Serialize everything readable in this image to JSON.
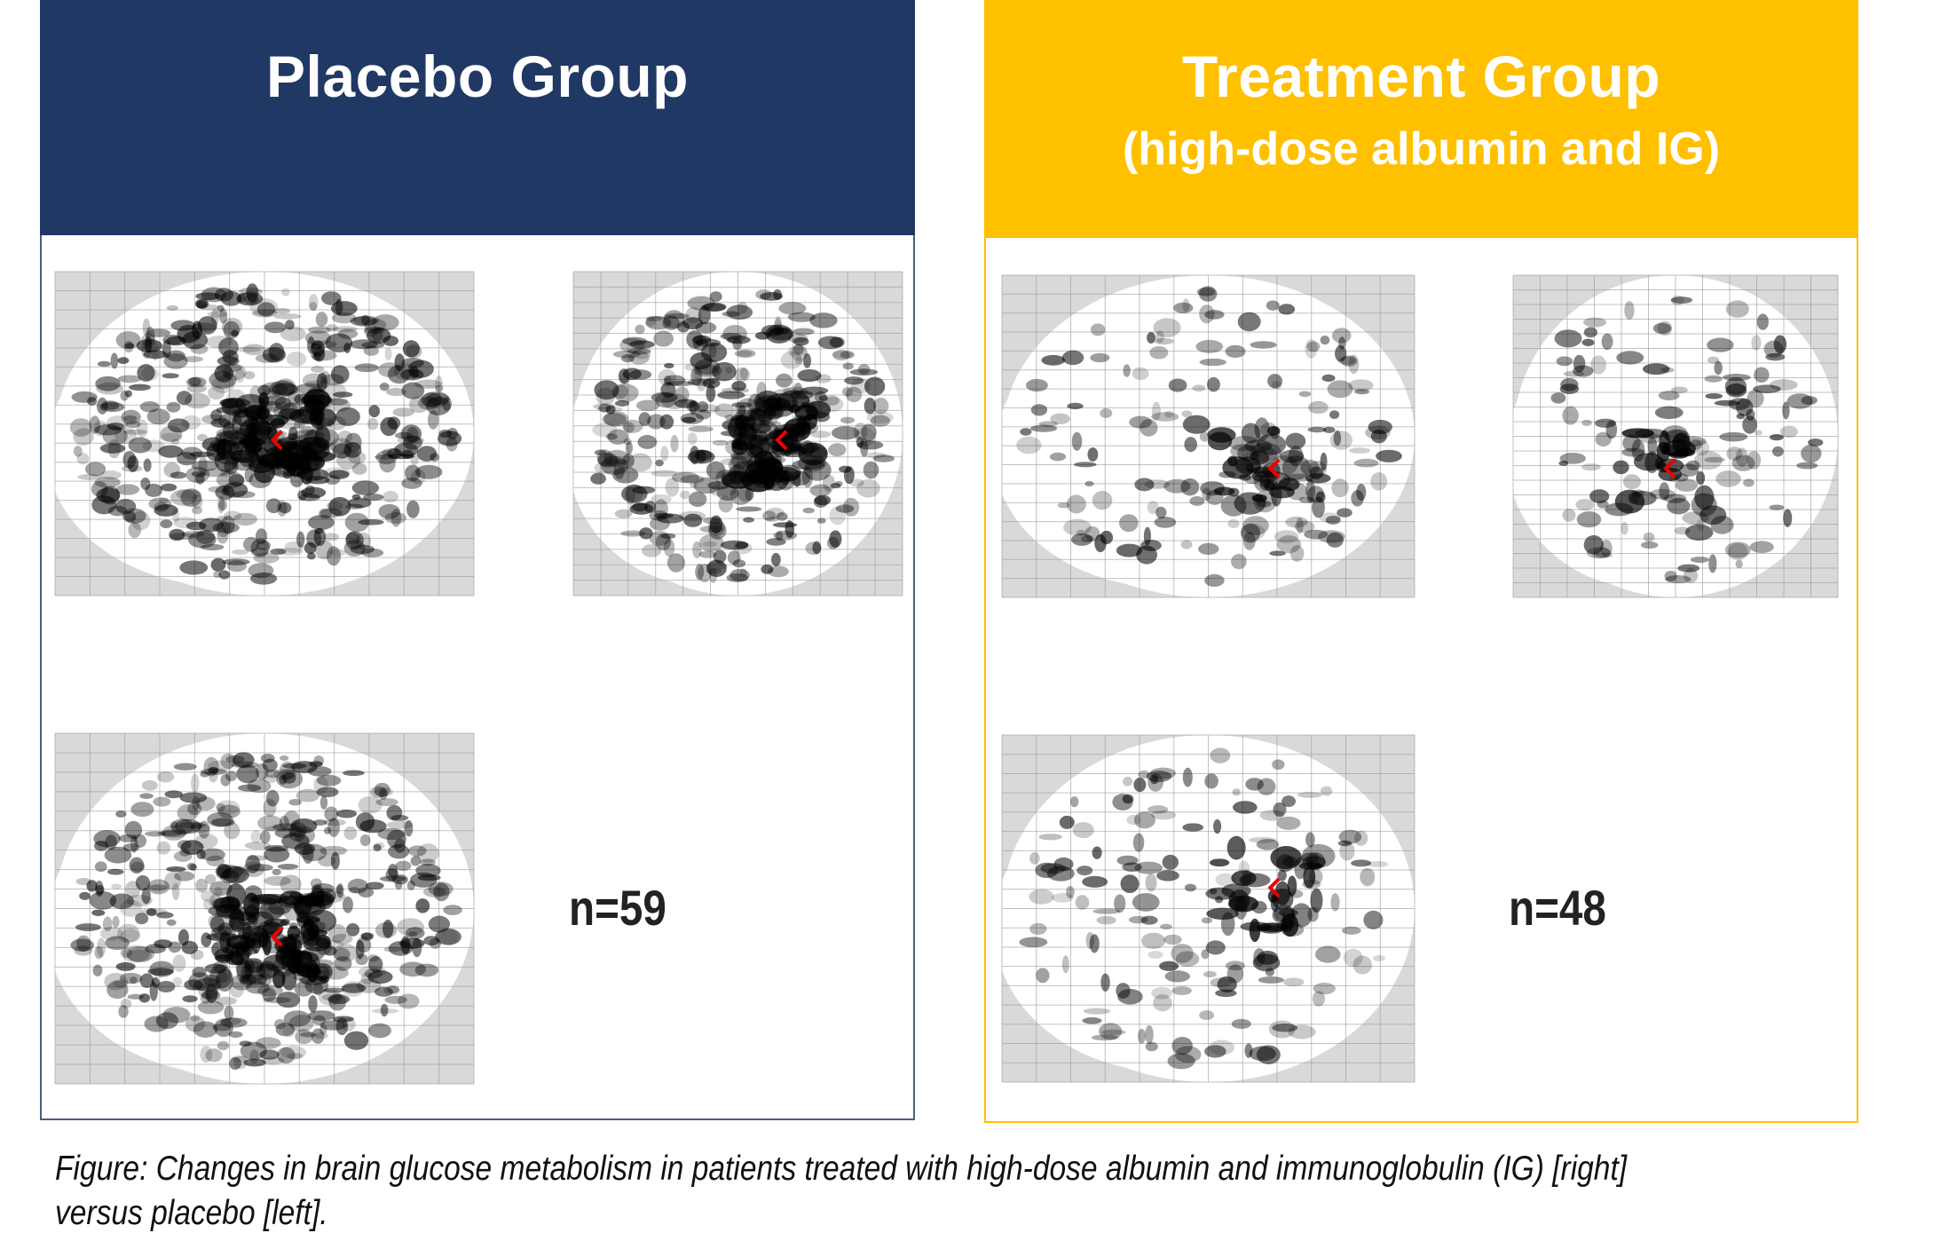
{
  "panels": [
    {
      "title": "Placebo Group",
      "n": "n=59"
    },
    {
      "title": "Treatment Group",
      "subtitle": "(high-dose albumin and IG)",
      "n": "n=48"
    }
  ],
  "caption": "Figure: Changes in brain glucose metabolism in patients treated with high-dose albumin and immunoglobulin (IG) [right] versus placebo [left]."
}
